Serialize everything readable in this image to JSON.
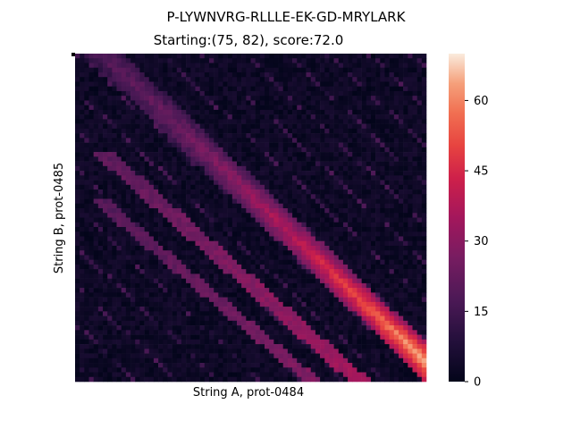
{
  "chart_data": {
    "type": "heatmap",
    "title": "P-LYWNVRG-RLLLE-EK-GD-MRYLARK",
    "subtitle": "Starting:(75, 82), score:72.0",
    "xlabel": "String A, prot-0484",
    "ylabel": "String B, prot-0485",
    "colorbar": {
      "min": 0,
      "max": 70,
      "ticks": [
        0,
        15,
        30,
        45,
        60
      ],
      "colormap": "rocket"
    },
    "grid": false,
    "matrix_shape": {
      "cols": 76,
      "rows": 70
    },
    "start_cell": {
      "x": 75,
      "y": 82
    },
    "score": 72.0,
    "diagonal_bands": [
      {
        "origin": "main alignment diagonal, upper-left to lower-right",
        "peak_value": 72,
        "min_value": 20
      },
      {
        "origin": "secondary band below main diagonal",
        "peak_value": 35
      },
      {
        "origin": "tertiary band further below",
        "peak_value": 28
      }
    ],
    "background_value_range": [
      0,
      12
    ]
  }
}
